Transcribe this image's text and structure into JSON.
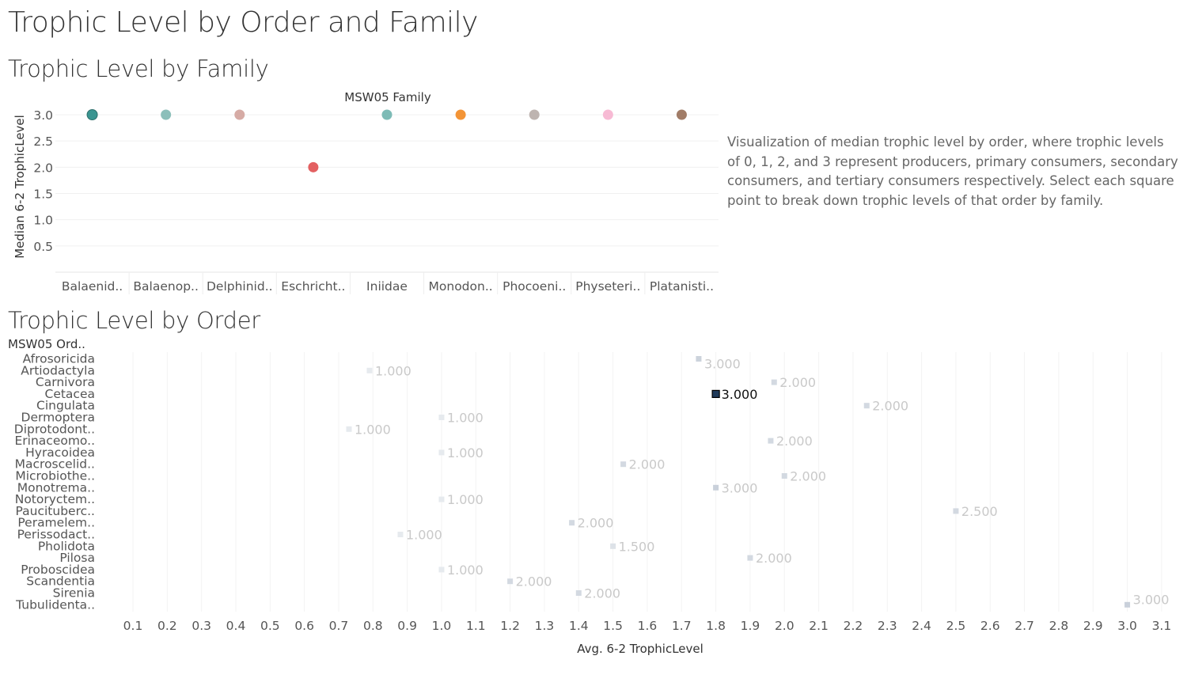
{
  "dashboard_title": "Trophic Level by Order and Family",
  "description": "Visualization of median trophic level by order, where trophic levels of 0, 1, 2, and 3 represent producers, primary consumers, secondary consumers, and tertiary consumers respectively. Select each square point to break down trophic levels of that order by family.",
  "chart_data": [
    {
      "title": "Trophic Level by Family",
      "type": "scatter",
      "legend_title": "MSW05 Family",
      "ylabel": "Median 6-2 TrophicLevel",
      "xlabel": "",
      "ylim": [
        0,
        3.2
      ],
      "yticks": [
        "0.5",
        "1.0",
        "1.5",
        "2.0",
        "2.5",
        "3.0"
      ],
      "grid": true,
      "categories": [
        "Balaenid..",
        "Balaenop..",
        "Delphinid..",
        "Eschricht..",
        "Iniidae",
        "Monodon..",
        "Phocoeni..",
        "Physeteri..",
        "Platanisti.."
      ],
      "values": [
        3,
        3,
        3,
        2,
        3,
        3,
        3,
        3,
        3
      ],
      "colors": [
        "#3a9591",
        "#86bcb6",
        "#d4a6a0",
        "#e15759",
        "#76b7b2",
        "#f28e2b",
        "#bab0ac",
        "#f7b6d2",
        "#9c755f"
      ]
    },
    {
      "title": "Trophic Level by Order",
      "type": "scatter",
      "row_header": "MSW05 Ord..",
      "xlabel": "Avg. 6-2 TrophicLevel",
      "xlim": [
        0,
        3.15
      ],
      "xticks": [
        "0.1",
        "0.2",
        "0.3",
        "0.4",
        "0.5",
        "0.6",
        "0.7",
        "0.8",
        "0.9",
        "1.0",
        "1.1",
        "1.2",
        "1.3",
        "1.4",
        "1.5",
        "1.6",
        "1.7",
        "1.8",
        "1.9",
        "2.0",
        "2.1",
        "2.2",
        "2.3",
        "2.4",
        "2.5",
        "2.6",
        "2.7",
        "2.8",
        "2.9",
        "3.0",
        "3.1"
      ],
      "grid": true,
      "selected": "Cetacea",
      "highlight_color": "#1f3a5a",
      "categories": [
        "Afrosoricida",
        "Artiodactyla",
        "Carnivora",
        "Cetacea",
        "Cingulata",
        "Dermoptera",
        "Diprotodont..",
        "Erinaceomo..",
        "Hyracoidea",
        "Macroscelid..",
        "Microbiothe..",
        "Monotrema..",
        "Notoryctem..",
        "Paucituberc..",
        "Peramelem..",
        "Perissodact..",
        "Pholidota",
        "Pilosa",
        "Proboscidea",
        "Scandentia",
        "Sirenia",
        "Tubulidenta.."
      ],
      "x": [
        1.75,
        0.79,
        1.97,
        1.8,
        2.24,
        1.0,
        0.73,
        1.96,
        1.0,
        1.53,
        2.0,
        1.8,
        1.0,
        2.5,
        1.38,
        0.88,
        1.5,
        1.9,
        1.0,
        1.2,
        1.4,
        3.0
      ],
      "labels": [
        "3.000",
        "1.000",
        "2.000",
        "3.000",
        "2.000",
        "1.000",
        "1.000",
        "2.000",
        "1.000",
        "2.000",
        "2.000",
        "3.000",
        "1.000",
        "2.500",
        "2.000",
        "1.000",
        "1.500",
        "2.000",
        "1.000",
        "2.000",
        "2.000",
        "3.000"
      ],
      "marker_shades": [
        "#ccd3dc",
        "#e6eaee",
        "#d3d9e1",
        "#1f3a5a",
        "#d3d9e1",
        "#e6eaee",
        "#e6eaee",
        "#d3d9e1",
        "#e6eaee",
        "#d3d9e1",
        "#d3d9e1",
        "#c9d0da",
        "#e6eaee",
        "#d3d9e1",
        "#d3d9e1",
        "#e6eaee",
        "#dde2e8",
        "#d3d9e1",
        "#e6eaee",
        "#d3d9e1",
        "#d3d9e1",
        "#c9d0da"
      ]
    }
  ]
}
